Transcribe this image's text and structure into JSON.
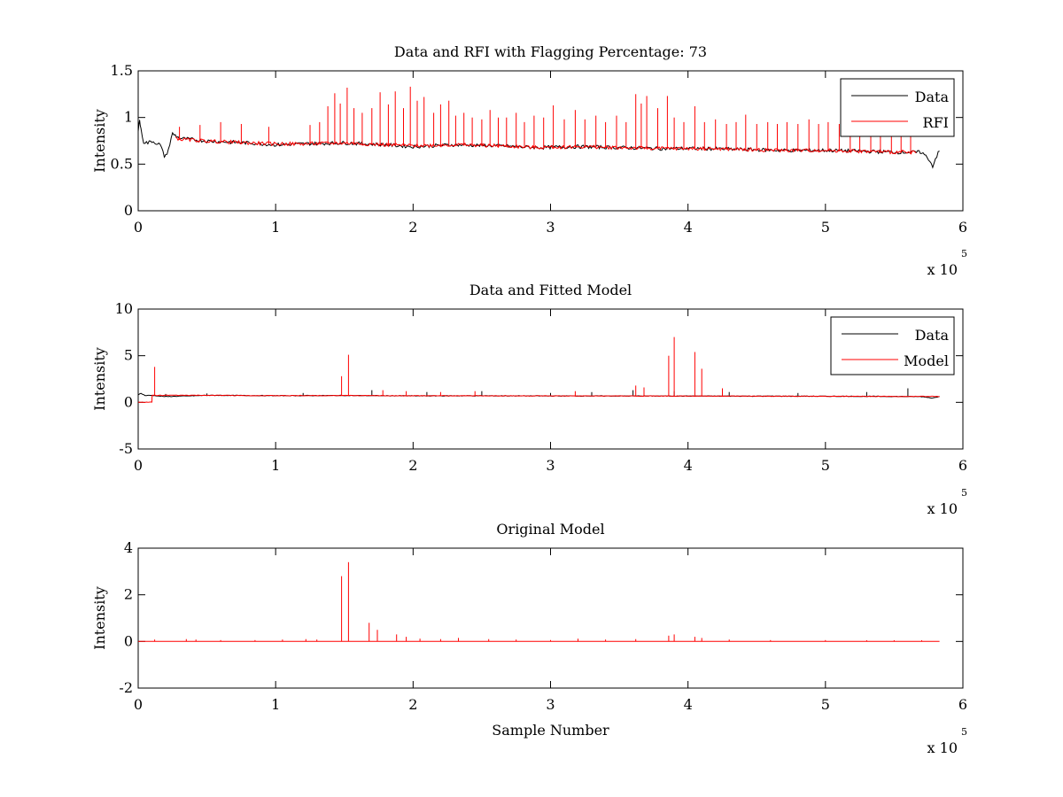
{
  "chart_data": [
    {
      "type": "line",
      "title": "Data and RFI with Flagging Percentage: 73",
      "xlabel": "",
      "ylabel": "Intensity",
      "xlim": [
        0,
        6
      ],
      "ylim": [
        0,
        1.5
      ],
      "xticks": [
        0,
        1,
        2,
        3,
        4,
        5,
        6
      ],
      "yticks": [
        0,
        0.5,
        1,
        1.5
      ],
      "x_exponent": "x 10",
      "x_exponent_power": "5",
      "legend": "top-right",
      "grid": false,
      "series": [
        {
          "name": "Data",
          "color": "#000000",
          "x": [
            0,
            0.01,
            0.02,
            0.04,
            0.07,
            0.1,
            0.13,
            0.16,
            0.19,
            0.2,
            0.22,
            0.25,
            0.3,
            0.5,
            0.8,
            1.0,
            1.2,
            1.5,
            1.8,
            2.0,
            2.3,
            2.6,
            2.9,
            3.2,
            3.5,
            3.8,
            4.1,
            4.4,
            4.7,
            5.0,
            5.3,
            5.5,
            5.7,
            5.75,
            5.78,
            5.8,
            5.83
          ],
          "y": [
            0.85,
            0.97,
            0.86,
            0.73,
            0.72,
            0.74,
            0.72,
            0.7,
            0.58,
            0.58,
            0.65,
            0.82,
            0.77,
            0.74,
            0.72,
            0.7,
            0.71,
            0.72,
            0.7,
            0.68,
            0.7,
            0.69,
            0.67,
            0.68,
            0.67,
            0.66,
            0.66,
            0.65,
            0.64,
            0.64,
            0.63,
            0.62,
            0.62,
            0.55,
            0.47,
            0.55,
            0.64
          ]
        },
        {
          "name": "RFI",
          "color": "#ff0000",
          "x": [
            0.27,
            0.3,
            0.5,
            0.8,
            1.0,
            1.2,
            1.5,
            1.8,
            2.0,
            2.3,
            2.6,
            2.9,
            3.2,
            3.5,
            3.8,
            4.1,
            4.4,
            4.7,
            5.0,
            5.3,
            5.5,
            5.66
          ],
          "y": [
            0.78,
            0.76,
            0.74,
            0.72,
            0.71,
            0.71,
            0.72,
            0.7,
            0.69,
            0.7,
            0.69,
            0.67,
            0.68,
            0.67,
            0.66,
            0.66,
            0.65,
            0.64,
            0.64,
            0.63,
            0.62,
            0.62
          ],
          "spike_x": [
            0.3,
            0.45,
            0.6,
            0.75,
            0.95,
            1.25,
            1.32,
            1.38,
            1.43,
            1.47,
            1.52,
            1.57,
            1.63,
            1.7,
            1.76,
            1.82,
            1.87,
            1.93,
            1.98,
            2.03,
            2.08,
            2.15,
            2.2,
            2.26,
            2.31,
            2.37,
            2.43,
            2.5,
            2.56,
            2.62,
            2.68,
            2.75,
            2.81,
            2.88,
            2.95,
            3.02,
            3.1,
            3.18,
            3.25,
            3.33,
            3.4,
            3.48,
            3.55,
            3.62,
            3.66,
            3.7,
            3.78,
            3.85,
            3.9,
            3.97,
            4.05,
            4.12,
            4.2,
            4.28,
            4.35,
            4.42,
            4.5,
            4.58,
            4.65,
            4.72,
            4.8,
            4.88,
            4.95,
            5.02,
            5.1,
            5.18,
            5.25,
            5.33,
            5.4,
            5.48,
            5.55,
            5.62
          ],
          "spike_y": [
            0.9,
            0.92,
            0.95,
            0.93,
            0.9,
            0.92,
            0.95,
            1.12,
            1.26,
            1.15,
            1.32,
            1.1,
            1.05,
            1.1,
            1.27,
            1.14,
            1.28,
            1.1,
            1.33,
            1.18,
            1.22,
            1.05,
            1.14,
            1.18,
            1.02,
            1.05,
            1.0,
            0.98,
            1.08,
            1.0,
            1.0,
            1.05,
            0.95,
            1.02,
            1.0,
            1.13,
            0.98,
            1.08,
            0.98,
            1.02,
            0.95,
            1.02,
            0.95,
            1.25,
            1.15,
            1.23,
            1.1,
            1.23,
            1.0,
            0.95,
            1.12,
            0.95,
            0.98,
            0.93,
            0.95,
            1.03,
            0.93,
            0.95,
            0.93,
            0.95,
            0.93,
            0.98,
            0.93,
            0.95,
            0.93,
            0.92,
            0.9,
            0.93,
            0.9,
            0.92,
            0.9,
            0.9
          ]
        }
      ]
    },
    {
      "type": "line",
      "title": "Data and Fitted Model",
      "xlabel": "",
      "ylabel": "Intensity",
      "xlim": [
        0,
        6
      ],
      "ylim": [
        -5,
        10
      ],
      "xticks": [
        0,
        1,
        2,
        3,
        4,
        5,
        6
      ],
      "yticks": [
        -5,
        0,
        5,
        10
      ],
      "x_exponent": "x 10",
      "x_exponent_power": "5",
      "legend": "top-right",
      "grid": false,
      "series": [
        {
          "name": "Data",
          "color": "#000000",
          "x": [
            0,
            0.02,
            0.05,
            0.1,
            0.2,
            0.5,
            1.0,
            1.5,
            2.0,
            2.5,
            3.0,
            3.5,
            4.0,
            4.5,
            5.0,
            5.5,
            5.7,
            5.78,
            5.83
          ],
          "y": [
            0.8,
            0.95,
            0.72,
            0.73,
            0.6,
            0.74,
            0.7,
            0.72,
            0.68,
            0.69,
            0.67,
            0.67,
            0.66,
            0.65,
            0.64,
            0.62,
            0.6,
            0.45,
            0.63
          ],
          "spike_x": [
            0.2,
            0.5,
            1.2,
            1.7,
            2.1,
            2.5,
            3.0,
            3.3,
            3.6,
            3.9,
            4.3,
            4.8,
            5.3,
            5.6
          ],
          "spike_y": [
            0.9,
            0.95,
            1.0,
            1.3,
            1.1,
            1.2,
            1.0,
            1.1,
            1.3,
            1.2,
            1.1,
            1.0,
            1.1,
            1.5
          ]
        },
        {
          "name": "Model",
          "color": "#ff0000",
          "x": [
            0,
            0.1,
            0.101,
            0.2,
            0.5,
            1.0,
            1.5,
            2.0,
            2.5,
            3.0,
            3.5,
            4.0,
            4.5,
            5.0,
            5.5,
            5.83
          ],
          "y": [
            0,
            0,
            0.75,
            0.74,
            0.74,
            0.7,
            0.72,
            0.69,
            0.69,
            0.67,
            0.67,
            0.66,
            0.65,
            0.64,
            0.62,
            0.62
          ],
          "spike_x": [
            0.12,
            1.48,
            1.53,
            1.78,
            1.95,
            2.2,
            2.45,
            3.18,
            3.62,
            3.68,
            3.86,
            3.9,
            4.05,
            4.1,
            4.25
          ],
          "spike_y": [
            3.8,
            2.8,
            5.1,
            1.3,
            1.2,
            1.1,
            1.2,
            1.2,
            1.8,
            1.6,
            5.0,
            7.0,
            5.4,
            3.6,
            1.5
          ]
        }
      ]
    },
    {
      "type": "line",
      "title": "Original Model",
      "xlabel": "Sample Number",
      "ylabel": "Intensity",
      "xlim": [
        0,
        6
      ],
      "ylim": [
        -2,
        4
      ],
      "xticks": [
        0,
        1,
        2,
        3,
        4,
        5,
        6
      ],
      "yticks": [
        -2,
        0,
        2,
        4
      ],
      "x_exponent": "x 10",
      "x_exponent_power": "5",
      "legend": "none",
      "grid": false,
      "series": [
        {
          "color": "#ff0000",
          "x": [
            0,
            5.83
          ],
          "y": [
            0,
            0
          ],
          "spike_x": [
            0.12,
            0.35,
            0.42,
            0.6,
            0.85,
            1.05,
            1.22,
            1.3,
            1.48,
            1.53,
            1.68,
            1.74,
            1.88,
            1.95,
            2.05,
            2.2,
            2.33,
            2.55,
            2.75,
            3.0,
            3.2,
            3.4,
            3.62,
            3.86,
            3.9,
            4.05,
            4.1,
            4.3,
            4.6,
            5.0,
            5.3,
            5.5,
            5.7
          ],
          "spike_y": [
            0.08,
            0.1,
            0.08,
            0.06,
            0.06,
            0.08,
            0.1,
            0.08,
            2.8,
            3.4,
            0.8,
            0.5,
            0.3,
            0.2,
            0.12,
            0.1,
            0.15,
            0.1,
            0.08,
            0.06,
            0.12,
            0.08,
            0.1,
            0.25,
            0.3,
            0.2,
            0.15,
            0.08,
            0.06,
            0.06,
            0.05,
            0.05,
            0.05
          ]
        }
      ]
    }
  ]
}
